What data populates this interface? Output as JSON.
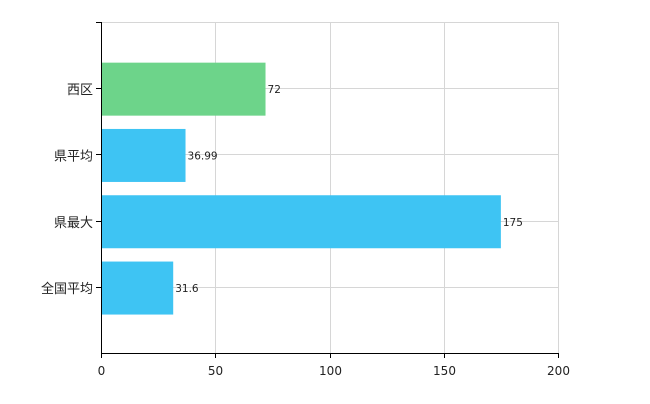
{
  "chart_data": {
    "type": "bar",
    "orientation": "horizontal",
    "title": "",
    "xlabel": "",
    "ylabel": "",
    "categories": [
      "西区",
      "県平均",
      "県最大",
      "全国平均"
    ],
    "values": [
      72,
      36.99,
      175,
      31.6
    ],
    "value_labels": [
      "72",
      "36.99",
      "175",
      "31.6"
    ],
    "bar_colors": [
      "#6dd48a",
      "#3ec4f3",
      "#3ec4f3",
      "#3ec4f3"
    ],
    "xlim": [
      0,
      200
    ],
    "x_ticks": [
      0,
      50,
      100,
      150,
      200
    ],
    "x_tick_labels": [
      "0",
      "50",
      "100",
      "150",
      "200"
    ],
    "grid": true,
    "legend": "none"
  }
}
